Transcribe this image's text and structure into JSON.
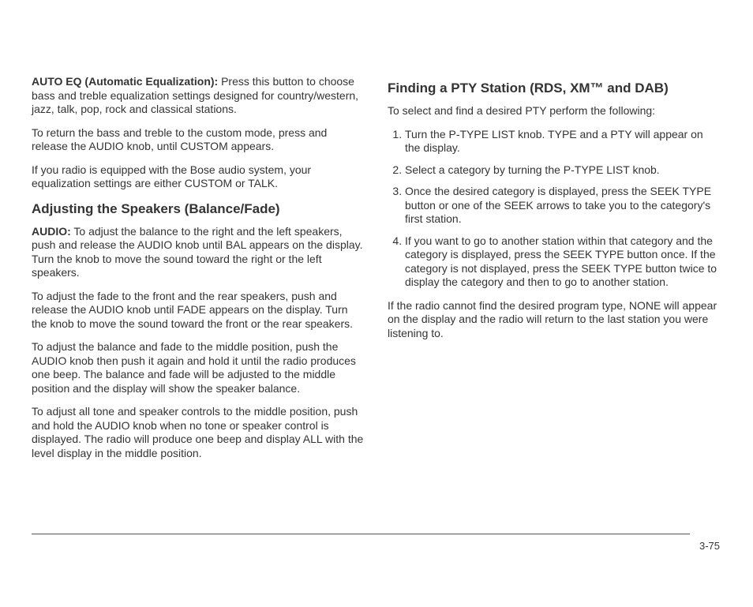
{
  "left": {
    "p1_bold": "AUTO EQ (Automatic Equalization):",
    "p1_rest": " Press this button to choose bass and treble equalization settings designed for country/western, jazz, talk, pop, rock and classical stations.",
    "p2": "To return the bass and treble to the custom mode, press and release the AUDIO knob, until CUSTOM appears.",
    "p3": "If you radio is equipped with the Bose audio system, your equalization settings are either CUSTOM or TALK.",
    "h1": "Adjusting the Speakers (Balance/Fade)",
    "p4_bold": "AUDIO:",
    "p4_rest": " To adjust the balance to the right and the left speakers, push and release the AUDIO knob until BAL appears on the display. Turn the knob to move the sound toward the right or the left speakers.",
    "p5": "To adjust the fade to the front and the rear speakers, push and release the AUDIO knob until FADE appears on the display. Turn the knob to move the sound toward the front or the rear speakers.",
    "p6": "To adjust the balance and fade to the middle position, push the AUDIO knob then push it again and hold it until the radio produces one beep. The balance and fade will be adjusted to the middle position and the display will show the speaker balance.",
    "p7": "To adjust all tone and speaker controls to the middle position, push and hold the AUDIO knob when no tone or speaker control is displayed. The radio will produce one beep and display ALL with the level display in the middle position."
  },
  "right": {
    "h1": "Finding a PTY Station (RDS, XM™ and DAB)",
    "intro": "To select and find a desired PTY perform the following:",
    "steps": [
      "Turn the P-TYPE LIST knob. TYPE and a PTY will appear on the display.",
      "Select a category by turning the P-TYPE LIST knob.",
      "Once the desired category is displayed, press the SEEK TYPE button or one of the SEEK arrows to take you to the category's first station.",
      "If you want to go to another station within that category and the category is displayed, press the SEEK TYPE button once. If the category is not displayed, press the SEEK TYPE button twice to display the category and then to go to another station."
    ],
    "outro": "If the radio cannot find the desired program type, NONE will appear on the display and the radio will return to the last station you were listening to."
  },
  "page_number": "3-75"
}
